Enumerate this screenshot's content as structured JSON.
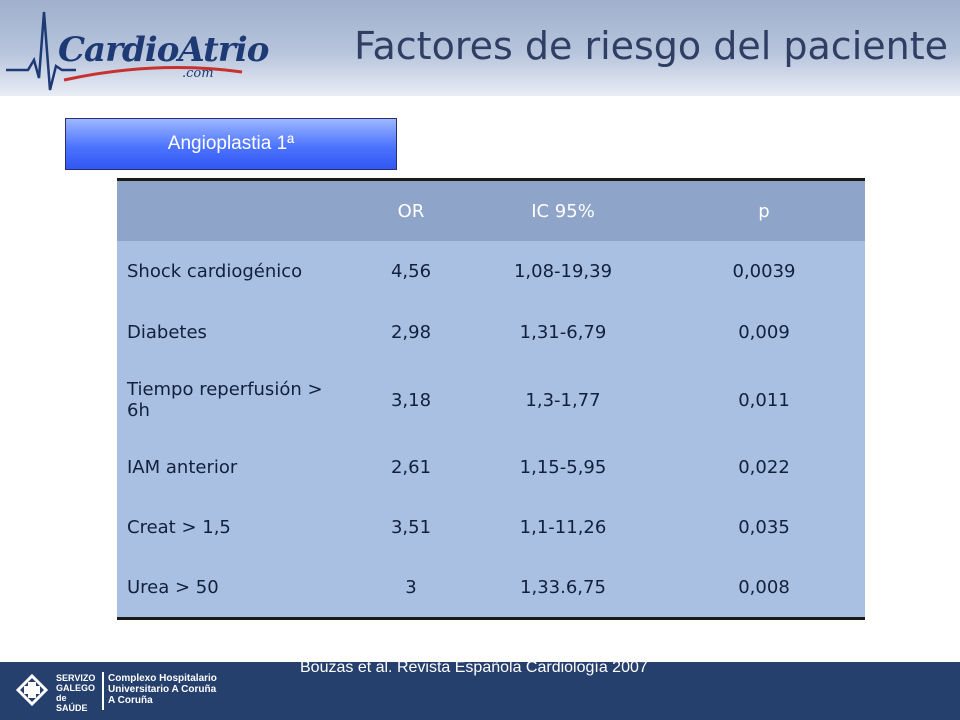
{
  "header": {
    "logo_text": "CardioAtrio",
    "logo_subtext": ".com",
    "title": "Factores de riesgo del paciente"
  },
  "subtitle": "Angioplastia 1ª",
  "table": {
    "columns": [
      "",
      "OR",
      "IC 95%",
      "p"
    ],
    "rows": [
      [
        "Shock cardiogénico",
        "4,56",
        "1,08-19,39",
        "0,0039"
      ],
      [
        "Diabetes",
        "2,98",
        "1,31-6,79",
        "0,009"
      ],
      [
        "Tiempo reperfusión > 6h",
        "3,18",
        "1,3-1,77",
        "0,011"
      ],
      [
        "IAM anterior",
        "2,61",
        "1,15-5,95",
        "0,022"
      ],
      [
        "Creat > 1,5",
        "3,51",
        "1,1-11,26",
        "0,035"
      ],
      [
        "Urea > 50",
        "3",
        "1,33.6,75",
        "0,008"
      ]
    ]
  },
  "citation": "Bouzas et al. Revista Española Cardiología 2007",
  "footer": {
    "org_line1": "SERVIZO",
    "org_line2": "GALEGO",
    "org_line3": "de SAÚDE",
    "hospital_line1": "Complexo Hospitalario",
    "hospital_line2": "Universitario A Coruña",
    "hospital_line3": "A Coruña"
  },
  "colors": {
    "title": "#2f3e63",
    "subtitle_box": "#4d74ff",
    "table_header": "#8ea4c8",
    "table_body": "#a9c0e2",
    "footer_band": "#26406e"
  }
}
